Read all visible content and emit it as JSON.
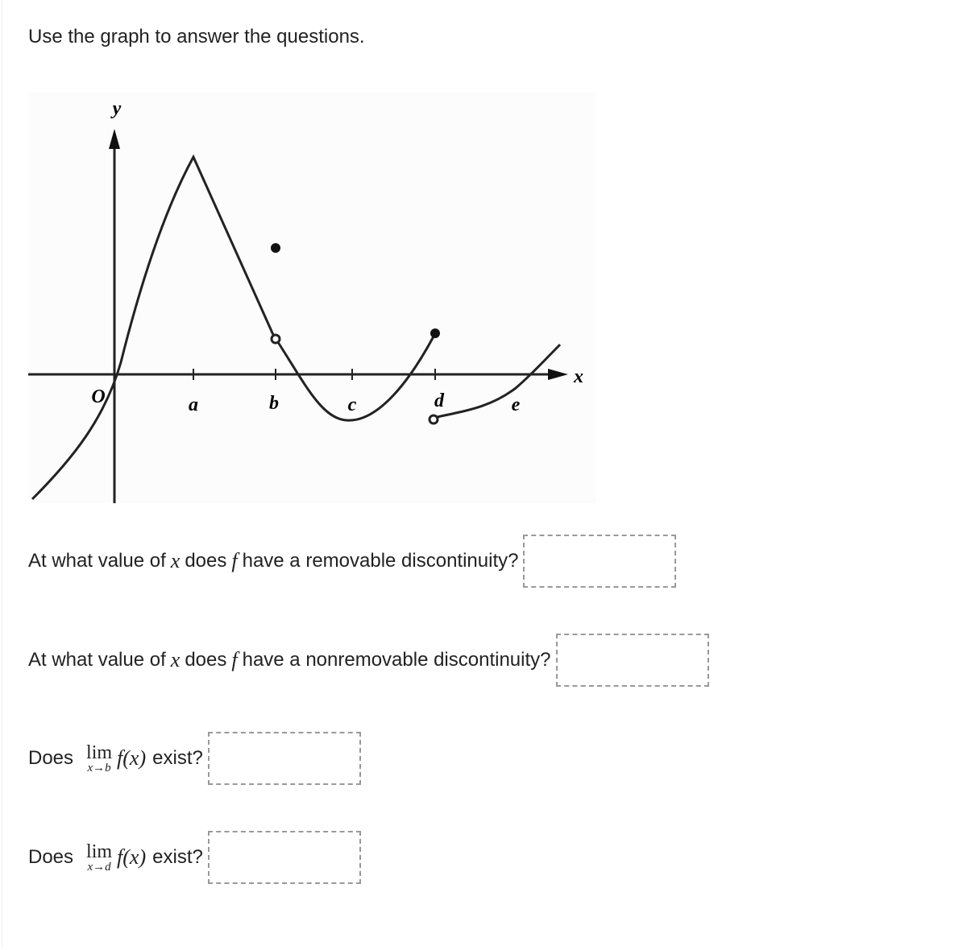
{
  "instruction": "Use the graph to answer the questions.",
  "graph": {
    "y_label": "y",
    "x_label": "x",
    "origin": "O",
    "points": [
      "a",
      "b",
      "c",
      "d",
      "e"
    ]
  },
  "questions": [
    {
      "before": "At what value of",
      "var": "x",
      "mid": "does",
      "func": "f",
      "after": "have a removable discontinuity?"
    },
    {
      "before": "At what value of",
      "var": "x",
      "mid": "does",
      "func": "f",
      "after": "have a nonremovable discontinuity?"
    }
  ],
  "limits": [
    {
      "before": "Does",
      "lim": "lim",
      "sub": "x→b",
      "func": "f(x)",
      "after": "exist?"
    },
    {
      "before": "Does",
      "lim": "lim",
      "sub": "x→d",
      "func": "f(x)",
      "after": "exist?"
    }
  ]
}
